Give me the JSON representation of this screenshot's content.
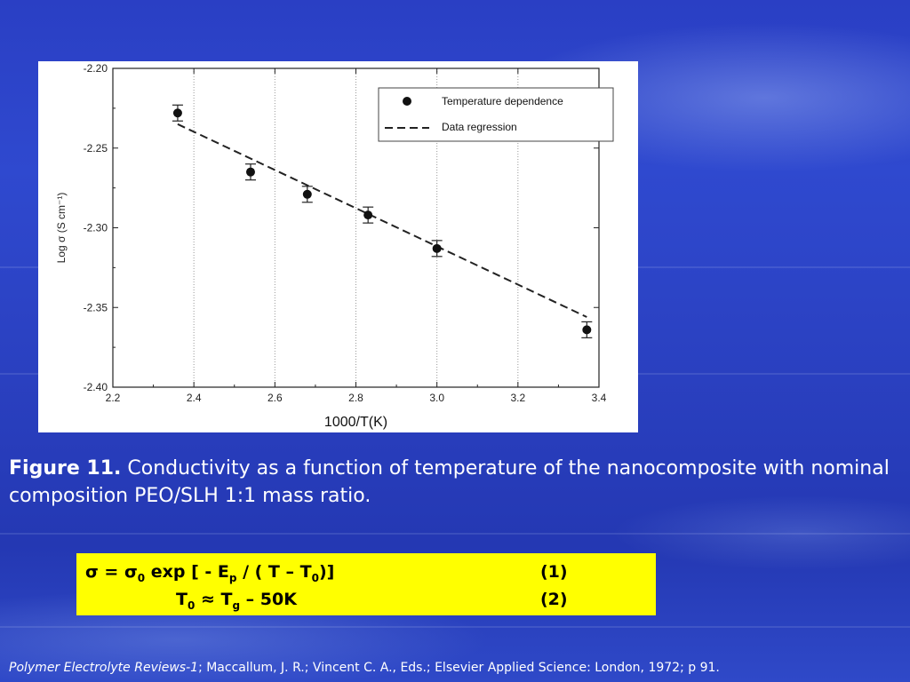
{
  "chart_data": {
    "type": "scatter",
    "xlabel": "1000/T(K)",
    "ylabel": "Log σ  (S cm⁻¹)",
    "xlim": [
      2.2,
      3.4
    ],
    "ylim": [
      -2.4,
      -2.2
    ],
    "x_ticks": [
      "2.2",
      "2.4",
      "2.6",
      "2.8",
      "3.0",
      "3.2",
      "3.4"
    ],
    "y_ticks": [
      "-2.20",
      "-2.25",
      "-2.30",
      "-2.35",
      "-2.40"
    ],
    "grid": "vertical dotted",
    "legend_position": "top-right",
    "series": [
      {
        "name": "Temperature dependence",
        "marker": "filled-circle",
        "x": [
          2.36,
          2.54,
          2.68,
          2.83,
          3.0,
          3.37
        ],
        "y": [
          -2.228,
          -2.265,
          -2.279,
          -2.292,
          -2.313,
          -2.364
        ],
        "error": [
          0.005,
          0.005,
          0.005,
          0.005,
          0.005,
          0.005
        ]
      },
      {
        "name": "Data regression",
        "style": "dashed-line",
        "x": [
          2.36,
          3.37
        ],
        "y": [
          -2.235,
          -2.356
        ]
      }
    ]
  },
  "caption": {
    "label": "Figure 11.",
    "text": " Conductivity as a function of temperature of the nanocomposite with nominal composition PEO/SLH 1:1 mass ratio."
  },
  "equations": {
    "eq1": {
      "sigma": "σ",
      "eq": "  = σ",
      "sub0": "0",
      "mid": " exp [ - E",
      "subp": "p",
      "rest": " / ( T – T",
      "sub0b": "0",
      "end": ")]",
      "number": "(1)"
    },
    "eq2": {
      "t": "T",
      "sub0": "0",
      "approx": " ≈ T",
      "subg": "g",
      "end": " – 50K",
      "number": "(2)"
    },
    "box_color": "#ffff00"
  },
  "reference": {
    "title": "Polymer Electrolyte Reviews-1",
    "text": "; Maccallum, J. R.; Vincent C. A., Eds.; Elsevier Applied Science: London, 1972; p 91."
  }
}
